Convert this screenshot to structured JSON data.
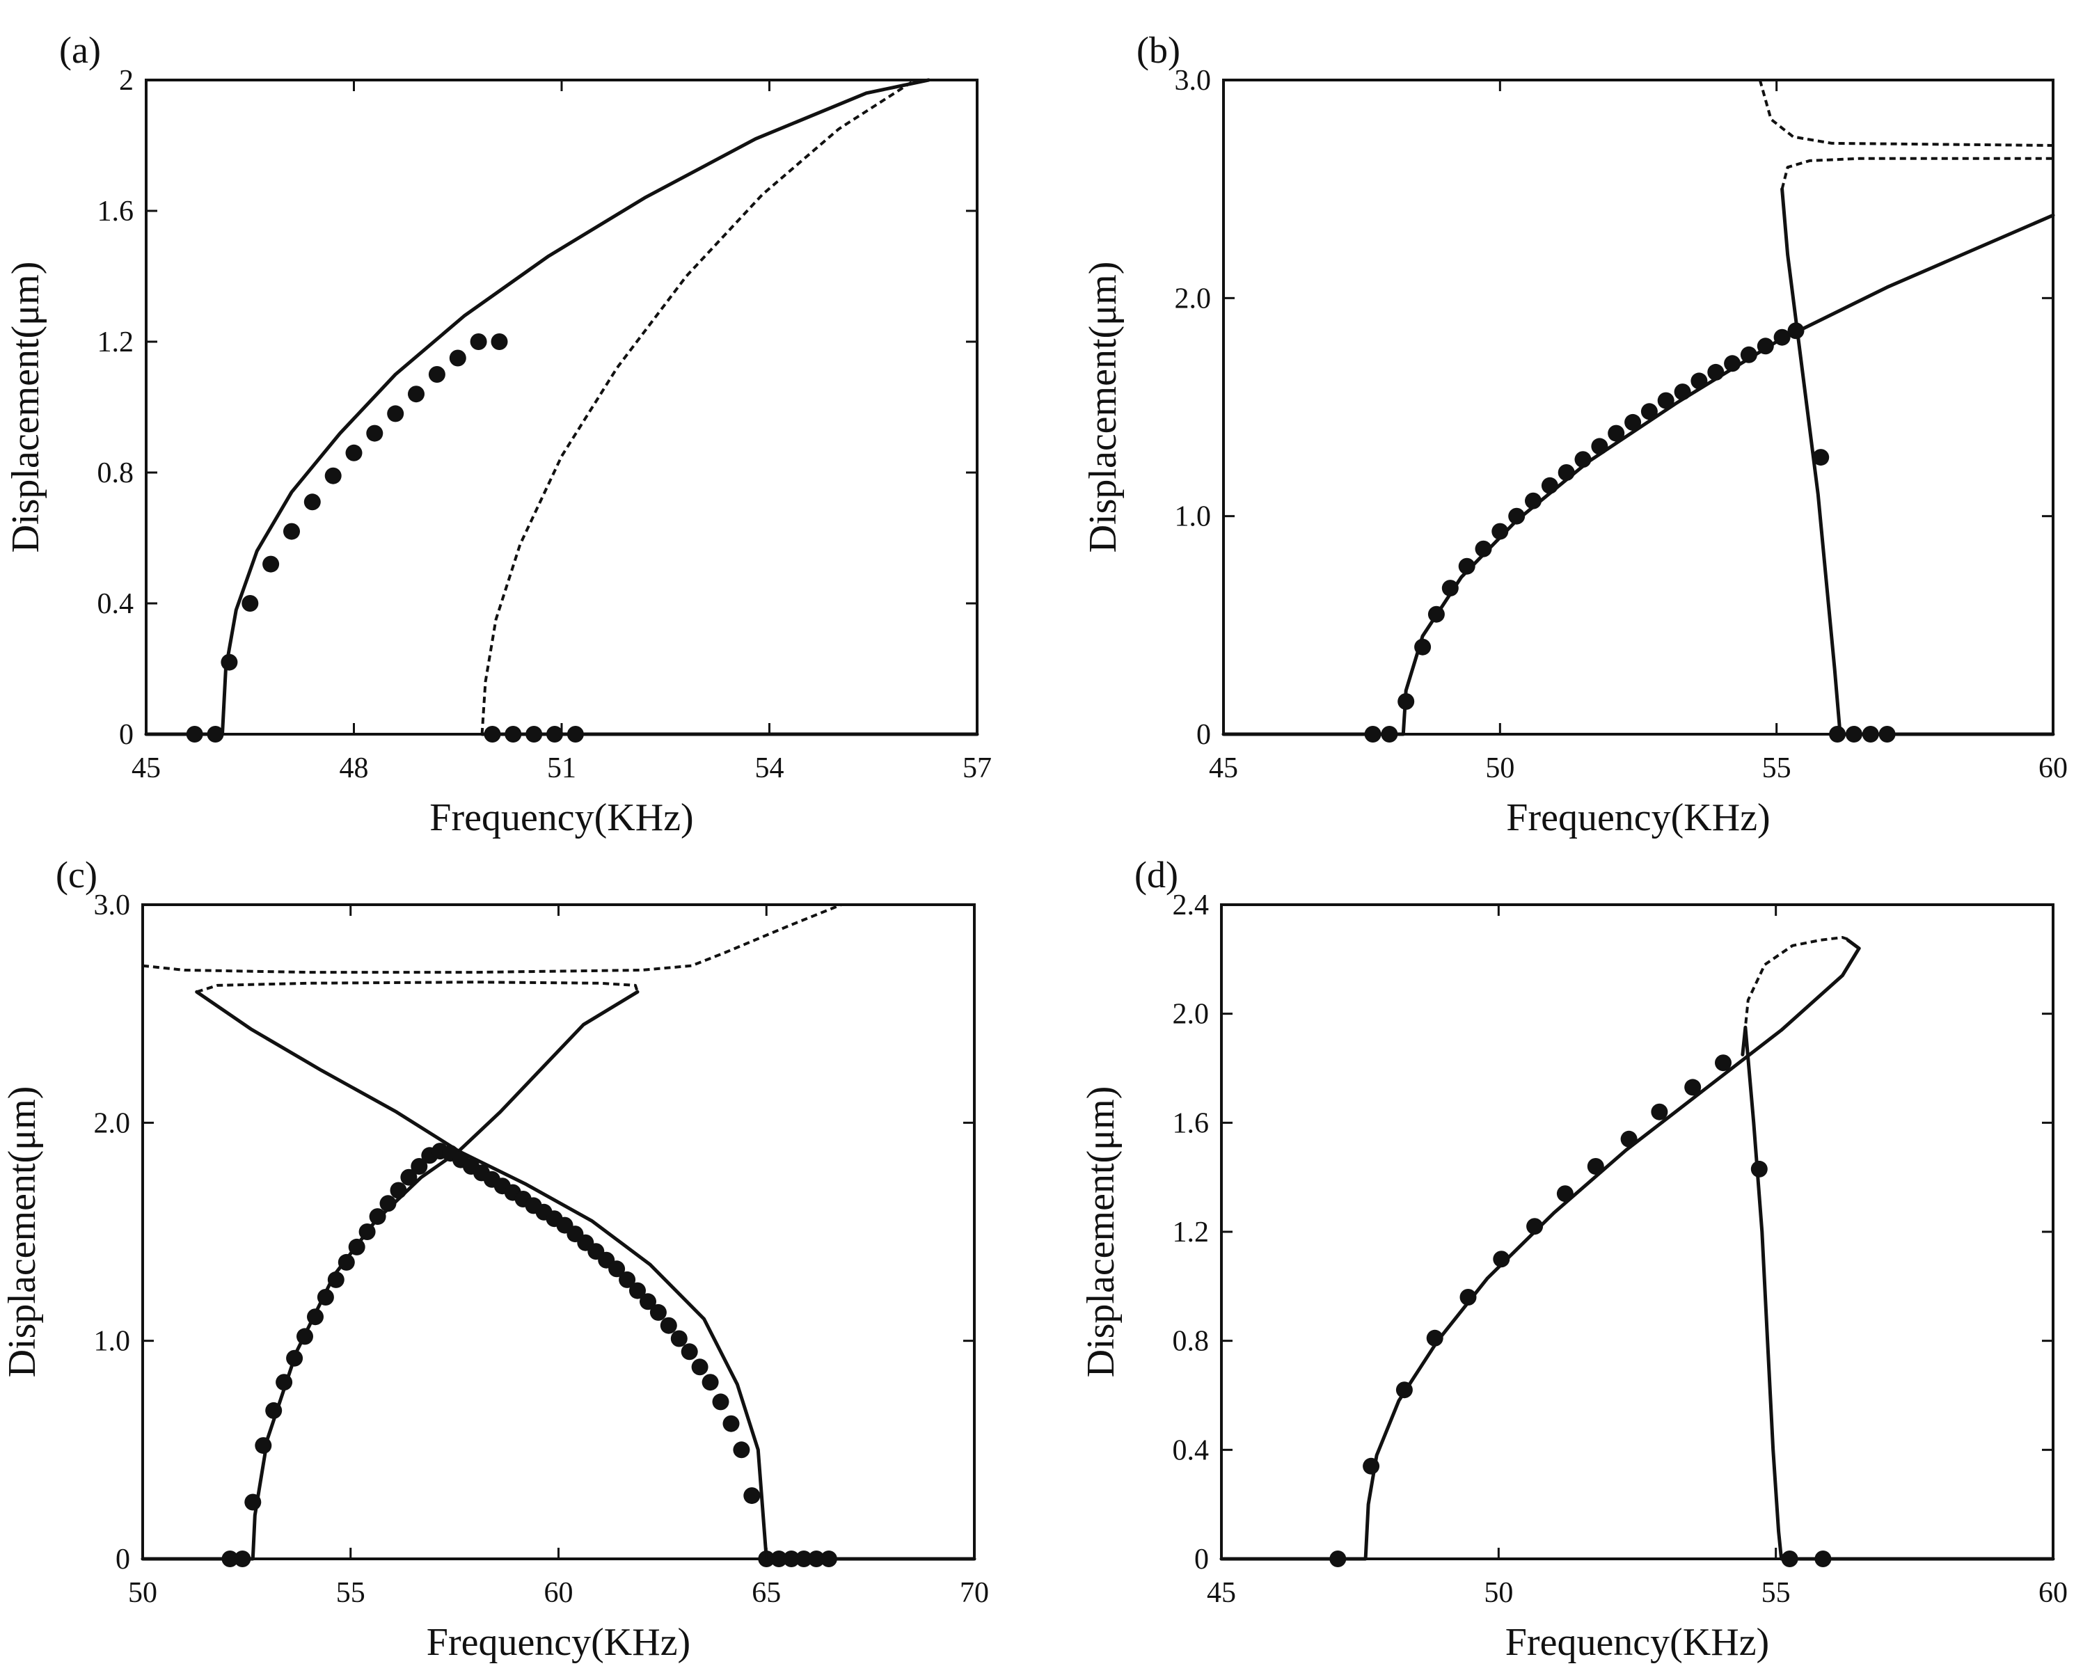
{
  "chart_data": [
    {
      "type": "line",
      "panel_label": "(a)",
      "xlabel": "Frequency(KHz)",
      "ylabel": "Displacement(μm)",
      "xlim": [
        45,
        57
      ],
      "ylim": [
        0,
        2
      ],
      "xticks": [
        45,
        48,
        51,
        54,
        57
      ],
      "xtick_labels": [
        "45",
        "48",
        "51",
        "54",
        "57"
      ],
      "yticks": [
        0,
        0.4,
        0.8,
        1.2,
        1.6,
        2.0
      ],
      "ytick_labels": [
        "0",
        "0.4",
        "0.8",
        "1.2",
        "1.6",
        "2"
      ],
      "series": [
        {
          "style": "solid",
          "x": [
            45,
            46.1,
            46.15,
            46.3,
            46.6,
            47.1,
            47.8,
            48.6,
            49.6,
            50.8,
            52.2,
            53.8,
            55.4,
            56.3
          ],
          "y": [
            0,
            0,
            0.2,
            0.38,
            0.56,
            0.74,
            0.92,
            1.1,
            1.28,
            1.46,
            1.64,
            1.82,
            1.96,
            2.0
          ]
        },
        {
          "style": "dashed",
          "x": [
            49.85,
            49.9,
            50.05,
            50.4,
            51.0,
            51.8,
            52.8,
            53.9,
            55.0,
            56.1
          ],
          "y": [
            0,
            0.16,
            0.35,
            0.58,
            0.85,
            1.12,
            1.4,
            1.65,
            1.85,
            2.0
          ]
        },
        {
          "style": "solid",
          "x": [
            49.85,
            57
          ],
          "y": [
            0,
            0
          ]
        }
      ],
      "markers": {
        "x": [
          45.7,
          46.0,
          46.2,
          46.5,
          46.8,
          47.1,
          47.4,
          47.7,
          48.0,
          48.3,
          48.6,
          48.9,
          49.2,
          49.5,
          49.8,
          50.1,
          50.0,
          50.3,
          50.6,
          50.9,
          51.2
        ],
        "y": [
          0,
          0,
          0.22,
          0.4,
          0.52,
          0.62,
          0.71,
          0.79,
          0.86,
          0.92,
          0.98,
          1.04,
          1.1,
          1.15,
          1.2,
          1.2,
          0,
          0,
          0,
          0,
          0
        ]
      }
    },
    {
      "type": "line",
      "panel_label": "(b)",
      "xlabel": "Frequency(KHz)",
      "ylabel": "Displacement(μm)",
      "xlim": [
        45,
        60
      ],
      "ylim": [
        0,
        3
      ],
      "xticks": [
        45,
        50,
        55,
        60
      ],
      "xtick_labels": [
        "45",
        "50",
        "55",
        "60"
      ],
      "yticks": [
        0,
        1.0,
        2.0,
        3.0
      ],
      "ytick_labels": [
        "0",
        "1.0",
        "2.0",
        "3.0"
      ],
      "series": [
        {
          "style": "solid",
          "x": [
            45,
            48.25,
            48.3,
            48.6,
            49.3,
            50.3,
            51.6,
            53.2,
            55.0,
            57.0,
            60.0
          ],
          "y": [
            0,
            0,
            0.2,
            0.45,
            0.72,
            0.98,
            1.25,
            1.52,
            1.8,
            2.05,
            2.38
          ]
        },
        {
          "style": "solid",
          "x": [
            55.1,
            55.2,
            55.35,
            55.55,
            55.75,
            55.9,
            56.05,
            56.15,
            60
          ],
          "y": [
            2.5,
            2.2,
            1.9,
            1.5,
            1.1,
            0.7,
            0.3,
            0,
            0
          ]
        },
        {
          "style": "dashed",
          "x": [
            54.7,
            54.9,
            55.3,
            56.0,
            60.0
          ],
          "y": [
            3.0,
            2.82,
            2.74,
            2.71,
            2.7
          ]
        },
        {
          "style": "dashed",
          "x": [
            55.1,
            55.2,
            55.6,
            56.5,
            60.0
          ],
          "y": [
            2.5,
            2.6,
            2.63,
            2.64,
            2.64
          ]
        }
      ],
      "markers": {
        "x": [
          47.7,
          48.0,
          48.3,
          48.6,
          48.85,
          49.1,
          49.4,
          49.7,
          50.0,
          50.3,
          50.6,
          50.9,
          51.2,
          51.5,
          51.8,
          52.1,
          52.4,
          52.7,
          53.0,
          53.3,
          53.6,
          53.9,
          54.2,
          54.5,
          54.8,
          55.1,
          55.35,
          55.8,
          56.1,
          56.4,
          56.7,
          57.0
        ],
        "y": [
          0,
          0,
          0.15,
          0.4,
          0.55,
          0.67,
          0.77,
          0.85,
          0.93,
          1.0,
          1.07,
          1.14,
          1.2,
          1.26,
          1.32,
          1.38,
          1.43,
          1.48,
          1.53,
          1.57,
          1.62,
          1.66,
          1.7,
          1.74,
          1.78,
          1.82,
          1.85,
          1.27,
          0,
          0,
          0,
          0
        ]
      }
    },
    {
      "type": "line",
      "panel_label": "(c)",
      "xlabel": "Frequency(KHz)",
      "ylabel": "Displacement(μm)",
      "xlim": [
        50,
        70
      ],
      "ylim": [
        0,
        3
      ],
      "xticks": [
        50,
        55,
        60,
        65,
        70
      ],
      "xtick_labels": [
        "50",
        "55",
        "60",
        "65",
        "70"
      ],
      "yticks": [
        0,
        1.0,
        2.0,
        3.0
      ],
      "ytick_labels": [
        "0",
        "1.0",
        "2.0",
        "3.0"
      ],
      "series": [
        {
          "style": "solid",
          "x": [
            50,
            52.65,
            52.7,
            53.0,
            53.7,
            54.6,
            55.6,
            56.7,
            57.6,
            58.6,
            59.6,
            60.6,
            61.9
          ],
          "y": [
            0,
            0,
            0.2,
            0.55,
            0.95,
            1.3,
            1.55,
            1.75,
            1.87,
            2.05,
            2.25,
            2.45,
            2.6
          ]
        },
        {
          "style": "solid",
          "x": [
            51.3,
            52.6,
            54.3,
            56.1,
            57.6,
            59.2,
            60.8,
            62.2,
            63.5,
            64.3,
            64.8,
            65.0,
            70
          ],
          "y": [
            2.6,
            2.43,
            2.24,
            2.05,
            1.87,
            1.72,
            1.55,
            1.35,
            1.1,
            0.8,
            0.5,
            0,
            0
          ]
        },
        {
          "style": "dashed",
          "x": [
            51.3,
            51.8,
            54.0,
            58.0,
            61.0,
            61.85,
            61.9
          ],
          "y": [
            2.6,
            2.63,
            2.64,
            2.645,
            2.64,
            2.63,
            2.6
          ]
        },
        {
          "style": "dashed",
          "x": [
            50.0,
            51.0,
            54.0,
            58.0,
            62.0,
            63.2,
            64.0,
            65.5,
            66.8
          ],
          "y": [
            2.72,
            2.7,
            2.69,
            2.69,
            2.7,
            2.72,
            2.78,
            2.9,
            3.0
          ]
        }
      ],
      "markers": {
        "x": [
          52.1,
          52.4,
          52.65,
          52.9,
          53.15,
          53.4,
          53.65,
          53.9,
          54.15,
          54.4,
          54.65,
          54.9,
          55.15,
          55.4,
          55.65,
          55.9,
          56.15,
          56.4,
          56.65,
          56.9,
          57.15,
          57.4,
          57.65,
          57.9,
          58.15,
          58.4,
          58.65,
          58.9,
          59.15,
          59.4,
          59.65,
          59.9,
          60.15,
          60.4,
          60.65,
          60.9,
          61.15,
          61.4,
          61.65,
          61.9,
          62.15,
          62.4,
          62.65,
          62.9,
          63.15,
          63.4,
          63.65,
          63.9,
          64.15,
          64.4,
          64.65,
          65.0,
          65.3,
          65.6,
          65.9,
          66.2,
          66.5
        ],
        "y": [
          0,
          0,
          0.26,
          0.52,
          0.68,
          0.81,
          0.92,
          1.02,
          1.11,
          1.2,
          1.28,
          1.36,
          1.43,
          1.5,
          1.57,
          1.63,
          1.69,
          1.75,
          1.8,
          1.85,
          1.87,
          1.86,
          1.83,
          1.8,
          1.77,
          1.74,
          1.71,
          1.68,
          1.65,
          1.62,
          1.59,
          1.56,
          1.53,
          1.49,
          1.45,
          1.41,
          1.37,
          1.33,
          1.28,
          1.23,
          1.18,
          1.13,
          1.07,
          1.01,
          0.95,
          0.88,
          0.81,
          0.72,
          0.62,
          0.5,
          0.29,
          0,
          0,
          0,
          0,
          0,
          0
        ]
      }
    },
    {
      "type": "line",
      "panel_label": "(d)",
      "xlabel": "Frequency(KHz)",
      "ylabel": "Displacement(μm)",
      "xlim": [
        45,
        60
      ],
      "ylim": [
        0,
        2.4
      ],
      "xticks": [
        45,
        50,
        55,
        60
      ],
      "xtick_labels": [
        "45",
        "50",
        "55",
        "60"
      ],
      "yticks": [
        0,
        0.4,
        0.8,
        1.2,
        1.6,
        2.0,
        2.4
      ],
      "ytick_labels": [
        "0",
        "0.4",
        "0.8",
        "1.2",
        "1.6",
        "2.0",
        "2.4"
      ],
      "series": [
        {
          "style": "solid",
          "x": [
            45,
            47.6,
            47.65,
            47.8,
            48.2,
            48.9,
            49.8,
            51.0,
            52.3,
            53.7,
            55.1,
            56.2,
            56.5,
            56.3
          ],
          "y": [
            0,
            0,
            0.2,
            0.38,
            0.58,
            0.8,
            1.03,
            1.27,
            1.5,
            1.72,
            1.94,
            2.14,
            2.24,
            2.27
          ]
        },
        {
          "style": "solid",
          "x": [
            54.4,
            54.45,
            54.6,
            54.75,
            54.85,
            54.95,
            55.05,
            55.1,
            60
          ],
          "y": [
            1.85,
            1.95,
            1.6,
            1.2,
            0.8,
            0.4,
            0.1,
            0,
            0
          ]
        },
        {
          "style": "dashed",
          "x": [
            54.4,
            54.5,
            54.8,
            55.3,
            55.8,
            56.2,
            56.35
          ],
          "y": [
            1.85,
            2.05,
            2.18,
            2.25,
            2.27,
            2.28,
            2.27
          ]
        }
      ],
      "markers": {
        "x": [
          47.1,
          47.7,
          48.3,
          48.85,
          49.45,
          50.05,
          50.65,
          51.2,
          51.75,
          52.35,
          52.9,
          53.5,
          54.05,
          54.7,
          55.25,
          55.85
        ],
        "y": [
          0,
          0.34,
          0.62,
          0.81,
          0.96,
          1.1,
          1.22,
          1.34,
          1.44,
          1.54,
          1.64,
          1.73,
          1.82,
          1.43,
          0,
          0
        ]
      }
    }
  ]
}
